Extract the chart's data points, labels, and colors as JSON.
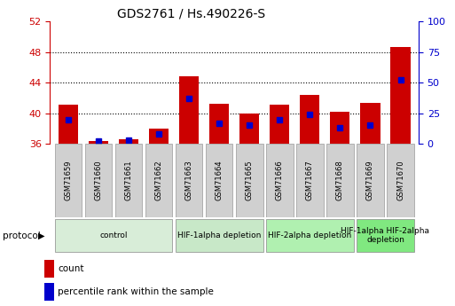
{
  "title": "GDS2761 / Hs.490226-S",
  "samples": [
    "GSM71659",
    "GSM71660",
    "GSM71661",
    "GSM71662",
    "GSM71663",
    "GSM71664",
    "GSM71665",
    "GSM71666",
    "GSM71667",
    "GSM71668",
    "GSM71669",
    "GSM71670"
  ],
  "count_values": [
    41.1,
    36.4,
    36.6,
    38.0,
    44.8,
    41.2,
    40.0,
    41.1,
    42.4,
    40.2,
    41.3,
    48.7
  ],
  "percentile_values": [
    20,
    2,
    3,
    8,
    37,
    17,
    15,
    20,
    24,
    13,
    15,
    52
  ],
  "bar_bottom": 36,
  "ylim_left": [
    36,
    52
  ],
  "ylim_right": [
    0,
    100
  ],
  "yticks_left": [
    36,
    40,
    44,
    48,
    52
  ],
  "yticks_right": [
    0,
    25,
    50,
    75,
    100
  ],
  "bar_color": "#cc0000",
  "dot_color": "#0000cc",
  "title_color": "#000000",
  "left_axis_color": "#cc0000",
  "right_axis_color": "#0000cc",
  "grid_color": "#000000",
  "groups": [
    {
      "label": "control",
      "start": 0,
      "end": 3,
      "color": "#d8edd8"
    },
    {
      "label": "HIF-1alpha depletion",
      "start": 4,
      "end": 6,
      "color": "#c8e8c8"
    },
    {
      "label": "HIF-2alpha depletion",
      "start": 7,
      "end": 9,
      "color": "#b0f0b0"
    },
    {
      "label": "HIF-1alpha HIF-2alpha\ndepletion",
      "start": 10,
      "end": 11,
      "color": "#80e880"
    }
  ],
  "legend_count_label": "count",
  "legend_percentile_label": "percentile rank within the sample",
  "protocol_label": "protocol"
}
